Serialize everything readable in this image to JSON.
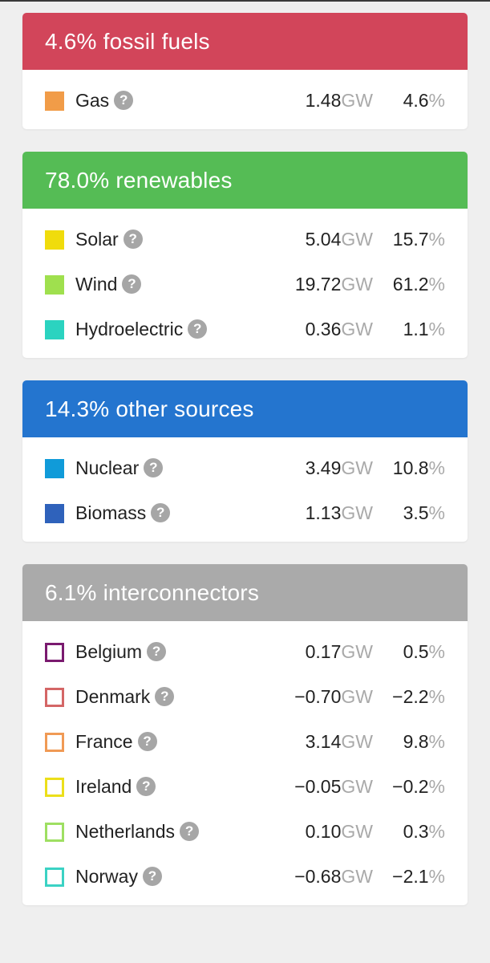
{
  "sections": [
    {
      "title": "4.6% fossil fuels",
      "color": "#d2455a",
      "rows": [
        {
          "name": "Gas",
          "gw": "1.48",
          "pct": "4.6",
          "swatch": "#f19c48",
          "outline": false
        }
      ]
    },
    {
      "title": "78.0% renewables",
      "color": "#55bc55",
      "rows": [
        {
          "name": "Solar",
          "gw": "5.04",
          "pct": "15.7",
          "swatch": "#f0dc0c",
          "outline": false
        },
        {
          "name": "Wind",
          "gw": "19.72",
          "pct": "61.2",
          "swatch": "#9fe04e",
          "outline": false
        },
        {
          "name": "Hydroelectric",
          "gw": "0.36",
          "pct": "1.1",
          "swatch": "#2bd3c0",
          "outline": false
        }
      ]
    },
    {
      "title": "14.3% other sources",
      "color": "#2475cf",
      "rows": [
        {
          "name": "Nuclear",
          "gw": "3.49",
          "pct": "10.8",
          "swatch": "#109bd9",
          "outline": false
        },
        {
          "name": "Biomass",
          "gw": "1.13",
          "pct": "3.5",
          "swatch": "#2f62bb",
          "outline": false
        }
      ]
    },
    {
      "title": "6.1% interconnectors",
      "color": "#aaaaaa",
      "rows": [
        {
          "name": "Belgium",
          "gw": "0.17",
          "pct": "0.5",
          "swatch": "#7a1a6f",
          "outline": true
        },
        {
          "name": "Denmark",
          "gw": "−0.70",
          "pct": "−2.2",
          "swatch": "#d46666",
          "outline": true
        },
        {
          "name": "France",
          "gw": "3.14",
          "pct": "9.8",
          "swatch": "#f09a55",
          "outline": true
        },
        {
          "name": "Ireland",
          "gw": "−0.05",
          "pct": "−0.2",
          "swatch": "#ecdf1a",
          "outline": true
        },
        {
          "name": "Netherlands",
          "gw": "0.10",
          "pct": "0.3",
          "swatch": "#9edf62",
          "outline": true
        },
        {
          "name": "Norway",
          "gw": "−0.68",
          "pct": "−2.1",
          "swatch": "#3bd2c4",
          "outline": true
        }
      ]
    }
  ],
  "units": {
    "power": "GW",
    "percent": "%"
  },
  "help_glyph": "?"
}
